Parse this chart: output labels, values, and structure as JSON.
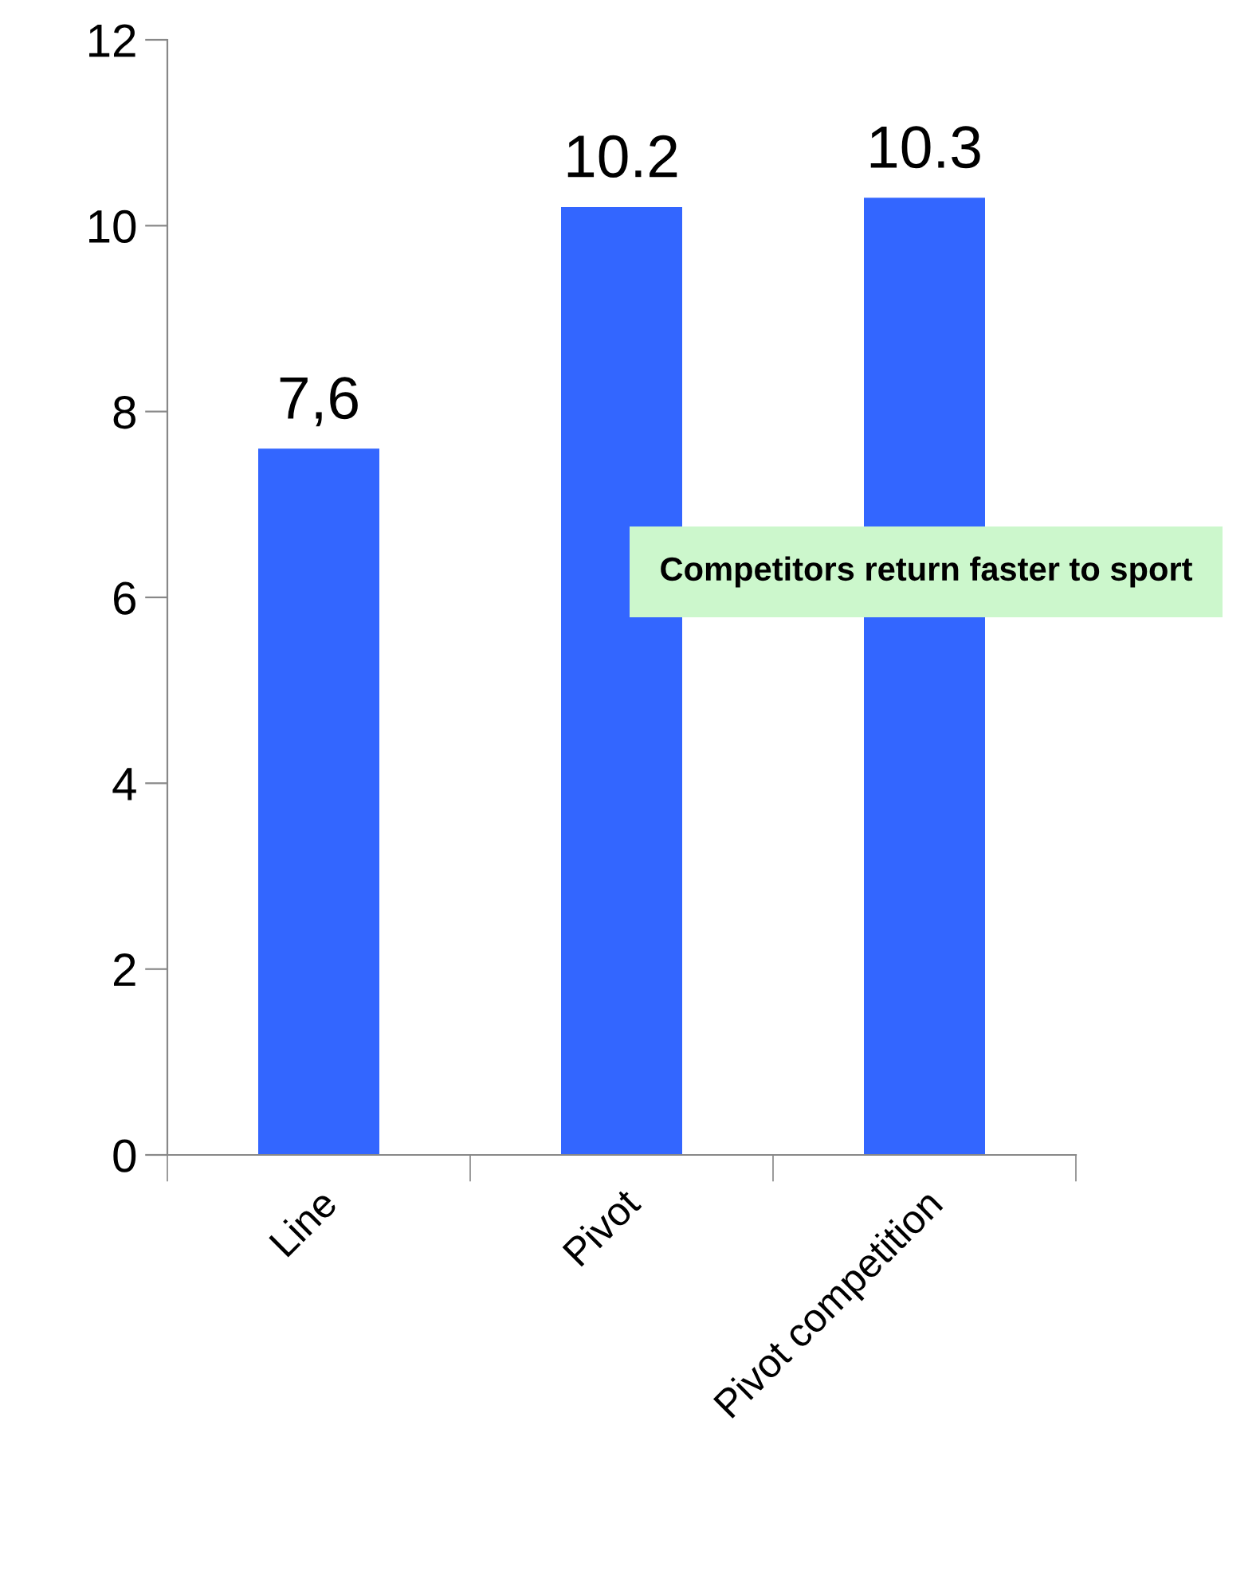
{
  "chart_data": {
    "type": "bar",
    "categories": [
      "Line",
      "Pivot",
      "Pivot competition"
    ],
    "values": [
      7.6,
      10.2,
      10.3
    ],
    "value_labels": [
      "7,6",
      "10.2",
      "10.3"
    ],
    "color": "#3366ff",
    "ylim": [
      0,
      12
    ],
    "yticks": [
      0,
      2,
      4,
      6,
      8,
      10,
      12
    ],
    "grid": false,
    "annotations": [
      "Competitors return faster to sport"
    ]
  }
}
